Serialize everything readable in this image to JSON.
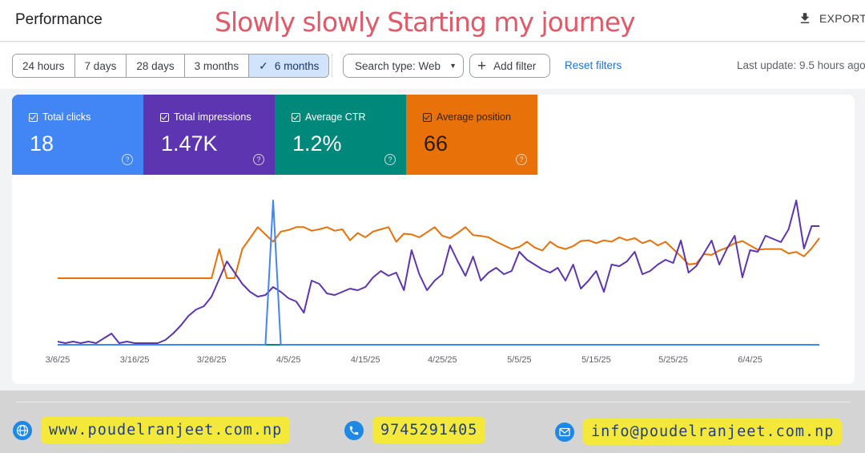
{
  "header": {
    "title": "Performance",
    "overlay_caption": "Slowly slowly Starting my journey",
    "export_label": "EXPORT",
    "export_icon": "download-icon"
  },
  "filters": {
    "date_ranges": [
      "24 hours",
      "7 days",
      "28 days",
      "3 months",
      "6 months"
    ],
    "selected_range": "6 months",
    "search_type": "Search type: Web",
    "add_filter": "Add filter",
    "reset_filters": "Reset filters",
    "last_update": "Last update: 9.5 hours ago"
  },
  "metrics": [
    {
      "label": "Total clicks",
      "value": "18",
      "color": "#4285f4"
    },
    {
      "label": "Total impressions",
      "value": "1.47K",
      "color": "#5e35b1"
    },
    {
      "label": "Average CTR",
      "value": "1.2%",
      "color": "#00897b"
    },
    {
      "label": "Average position",
      "value": "66",
      "color": "#e8710a"
    }
  ],
  "chart_data": {
    "type": "line",
    "x_ticks": [
      "3/6/25",
      "3/16/25",
      "3/26/25",
      "4/5/25",
      "4/15/25",
      "4/25/25",
      "5/5/25",
      "5/15/25",
      "5/25/25",
      "6/4/25"
    ],
    "grid": false,
    "series": [
      {
        "name": "Total clicks",
        "color": "#4285f4",
        "values": [
          0,
          0,
          0,
          0,
          0,
          0,
          0,
          0,
          0,
          0,
          0,
          0,
          0,
          0,
          0,
          0,
          0,
          0,
          0,
          0,
          0,
          0,
          0,
          0,
          0,
          0,
          0,
          0,
          1,
          0,
          0,
          0,
          0,
          0,
          0,
          0,
          0,
          0,
          0,
          0,
          0,
          0,
          0,
          0,
          0,
          0,
          0,
          0,
          0,
          0,
          0,
          0,
          0,
          0,
          0,
          0,
          0,
          0,
          0,
          0,
          0,
          0,
          0,
          0,
          0,
          0,
          0,
          0,
          0,
          0,
          0,
          0,
          0,
          0,
          0,
          0,
          0,
          0,
          0,
          0,
          0,
          0,
          0,
          0,
          0,
          0,
          0,
          0,
          0,
          0,
          0,
          0,
          0,
          0,
          0,
          0,
          0,
          0,
          0,
          0
        ]
      },
      {
        "name": "Total impressions",
        "color": "#5e35b1",
        "values": [
          2,
          1,
          2,
          1,
          2,
          1,
          4,
          7,
          1,
          2,
          1,
          1,
          1,
          1,
          3,
          7,
          12,
          18,
          22,
          24,
          30,
          41,
          52,
          45,
          38,
          33,
          30,
          31,
          36,
          33,
          29,
          27,
          20,
          40,
          38,
          32,
          31,
          33,
          35,
          34,
          36,
          42,
          46,
          43,
          45,
          34,
          59,
          44,
          34,
          40,
          44,
          62,
          52,
          43,
          55,
          40,
          45,
          48,
          44,
          46,
          58,
          53,
          50,
          47,
          45,
          48,
          40,
          50,
          35,
          40,
          46,
          33,
          50,
          49,
          52,
          58,
          44,
          46,
          50,
          53,
          51,
          65,
          45,
          49,
          57,
          65,
          50,
          60,
          68,
          42,
          59,
          58,
          68,
          66,
          64,
          72,
          90,
          60,
          74,
          74
        ]
      },
      {
        "name": "Average CTR",
        "color": "#00897b",
        "values": [
          0,
          0,
          0,
          0,
          0,
          0,
          0,
          0,
          0,
          0,
          0,
          0,
          0,
          0,
          0,
          0,
          0,
          0,
          0,
          0,
          0,
          0,
          0,
          0,
          0,
          0,
          0,
          0,
          0,
          0,
          0,
          0,
          0,
          0,
          0,
          0,
          0,
          0,
          0,
          0,
          0,
          0,
          0,
          0,
          0,
          0,
          0,
          0,
          0,
          0,
          0,
          0,
          0,
          0,
          0,
          0,
          0,
          0,
          0,
          0,
          0,
          0,
          0,
          0,
          0,
          0,
          0,
          0,
          0,
          0,
          0,
          0,
          0,
          0,
          0,
          0,
          0,
          0,
          0,
          0,
          0,
          0,
          0,
          0,
          0,
          0,
          0,
          0,
          0,
          0,
          0,
          0,
          0,
          0,
          0,
          0,
          0,
          0,
          0,
          0
        ]
      },
      {
        "name": "Average position",
        "color": "#e8710a",
        "values": [
          100,
          100,
          100,
          100,
          100,
          100,
          100,
          100,
          100,
          100,
          100,
          100,
          100,
          100,
          100,
          100,
          100,
          100,
          100,
          100,
          100,
          60,
          100,
          100,
          60,
          45,
          30,
          40,
          50,
          36,
          34,
          30,
          30,
          35,
          33,
          30,
          35,
          33,
          48,
          38,
          44,
          36,
          33,
          30,
          50,
          39,
          40,
          44,
          37,
          30,
          42,
          45,
          38,
          30,
          41,
          42,
          44,
          50,
          55,
          60,
          57,
          50,
          58,
          62,
          50,
          57,
          60,
          56,
          49,
          48,
          52,
          48,
          50,
          44,
          48,
          45,
          52,
          48,
          55,
          50,
          60,
          70,
          81,
          80,
          67,
          68,
          62,
          58,
          52,
          49,
          55,
          61,
          60,
          60,
          60,
          66,
          64,
          70,
          59,
          45
        ]
      }
    ]
  },
  "footer": {
    "website": "www.poudelranjeet.com.np",
    "phone": "9745291405",
    "email": "info@poudelranjeet.com.np"
  }
}
